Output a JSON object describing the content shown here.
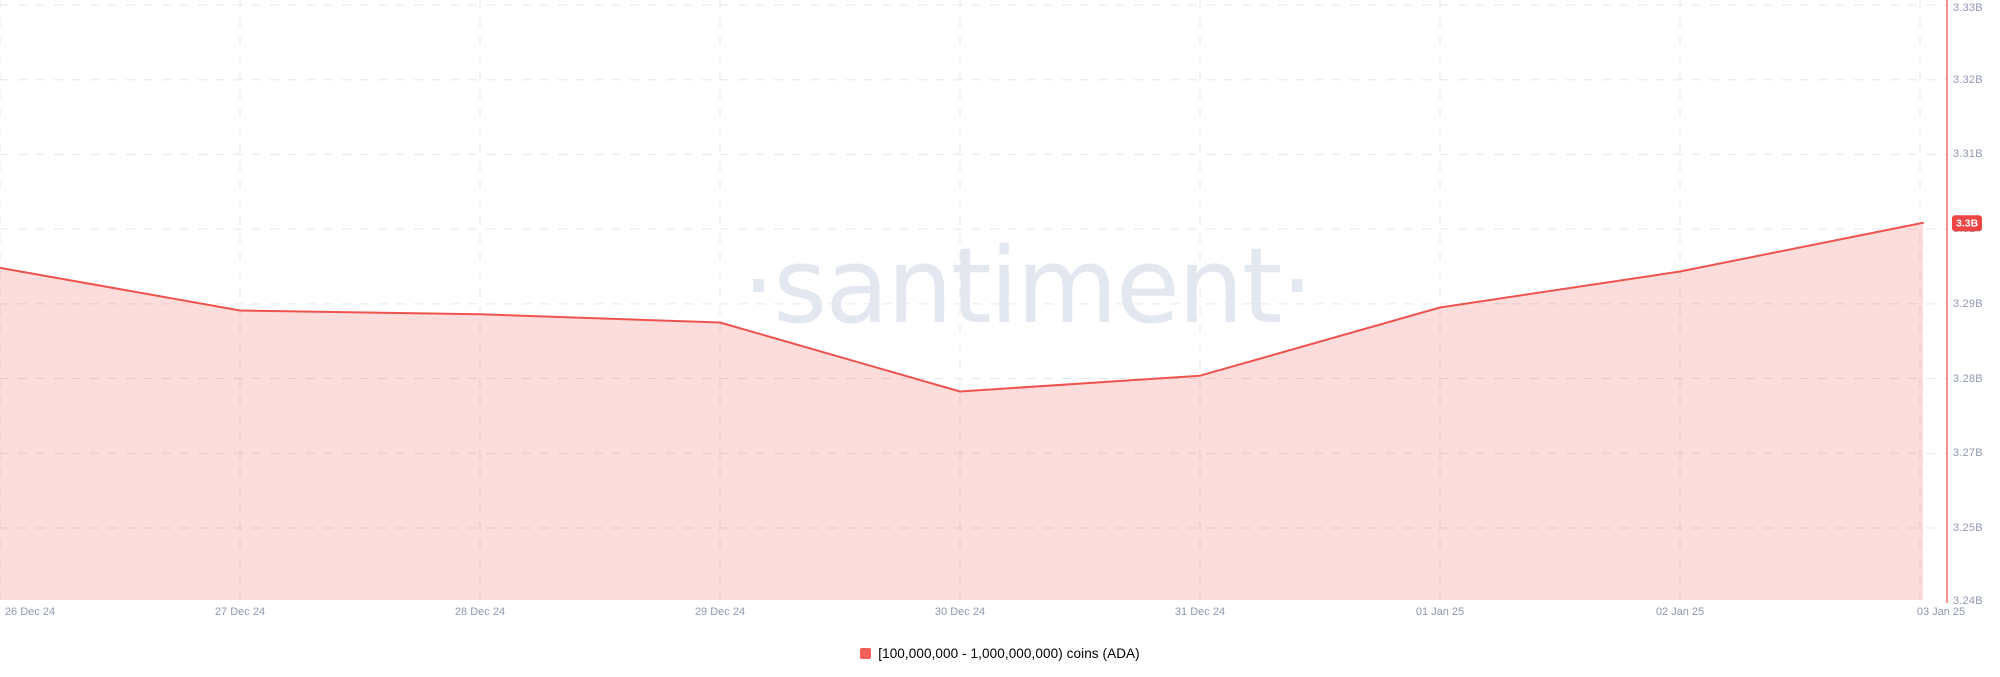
{
  "watermark_text": "·santiment·",
  "colors": {
    "line": "#ee5350",
    "fill": "rgba(239,83,80,0.2)",
    "marker_line": "#f0918d",
    "badge_bg": "#ef4444",
    "badge_text": "#ffffff",
    "axis_label": "#9098b0",
    "grid": "#e7e7e7",
    "watermark": "#e3e7f0",
    "legend_text": "#1e2230",
    "legend_swatch": "#f25e5a"
  },
  "y_axis": {
    "ticks": [
      "3.33B",
      "3.32B",
      "3.31B",
      "3.3B",
      "3.29B",
      "3.28B",
      "3.27B",
      "3.25B",
      "3.24B"
    ]
  },
  "x_axis": {
    "ticks": [
      "26 Dec 24",
      "27 Dec 24",
      "28 Dec 24",
      "29 Dec 24",
      "30 Dec 24",
      "31 Dec 24",
      "01 Jan 25",
      "02 Jan 25",
      "03 Jan 25"
    ]
  },
  "current_value_badge": "3.3B",
  "legend": {
    "label": "[100,000,000 - 1,000,000,000) coins (ADA)"
  },
  "chart_data": {
    "type": "area",
    "title": "",
    "xlabel": "",
    "ylabel": "",
    "categories": [
      "26 Dec 24",
      "27 Dec 24",
      "28 Dec 24",
      "29 Dec 24",
      "30 Dec 24",
      "31 Dec 24",
      "01 Jan 25",
      "02 Jan 25",
      "03 Jan 25"
    ],
    "series": [
      {
        "name": "[100,000,000 - 1,000,000,000) coins (ADA)",
        "unit": "coins (billions)",
        "values_billions": [
          3.295,
          3.2893,
          3.2888,
          3.2877,
          3.2785,
          3.2806,
          3.2897,
          3.2945,
          3.301
        ]
      }
    ],
    "last_value_label": "3.3B",
    "y_tick_labels": [
      "3.33B",
      "3.32B",
      "3.31B",
      "3.3B",
      "3.29B",
      "3.28B",
      "3.27B",
      "3.25B",
      "3.24B"
    ],
    "ylim_billions": [
      3.2507,
      3.3307
    ],
    "grid": "dashed",
    "legend_position": "bottom-center"
  }
}
